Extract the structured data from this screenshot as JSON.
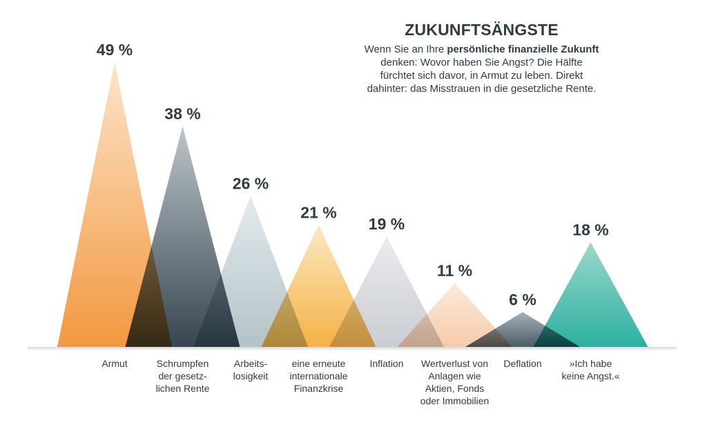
{
  "chart_data": {
    "type": "bar",
    "title": "ZUKUNFTSÄNGSTE",
    "subtitle_parts": [
      "Wenn Sie an Ihre ",
      "persönliche finanzielle Zukunft",
      " denken: Wovor haben Sie Angst? Die Hälfte fürchtet sich davor, in Armut zu leben. Direkt dahinter: das Misstrauen in die gesetzliche Rente."
    ],
    "categories": [
      [
        "Armut"
      ],
      [
        "Schrumpfen",
        "der gesetz-",
        "lichen Rente"
      ],
      [
        "Arbeits-",
        "losigkeit"
      ],
      [
        "eine erneute",
        "internationale",
        "Finanzkrise"
      ],
      [
        "Inflation"
      ],
      [
        "Wertverlust von",
        "Anlagen wie",
        "Aktien, Fonds",
        "oder Immobilien"
      ],
      [
        "Deflation"
      ],
      [
        "»Ich habe",
        "keine Angst.«"
      ]
    ],
    "values": [
      49,
      38,
      26,
      21,
      19,
      11,
      6,
      18
    ],
    "value_labels": [
      "49 %",
      "38 %",
      "26 %",
      "21 %",
      "19 %",
      "11 %",
      "6 %",
      "18 %"
    ],
    "colors": [
      [
        "#fde0c2",
        "#f08a24"
      ],
      [
        "#b4bdc4",
        "#1b2c38"
      ],
      [
        "#dfe8eb",
        "#a9babf"
      ],
      [
        "#fbe6b8",
        "#f3a72c"
      ],
      [
        "#e6e8ec",
        "#c3c6cd"
      ],
      [
        "#fde6d4",
        "#f5c4a0"
      ],
      [
        "#9aa7b1",
        "#33454f"
      ],
      [
        "#8fd2c5",
        "#0da693"
      ]
    ],
    "ylim": [
      0,
      49
    ],
    "grid": false,
    "legend": "none"
  }
}
